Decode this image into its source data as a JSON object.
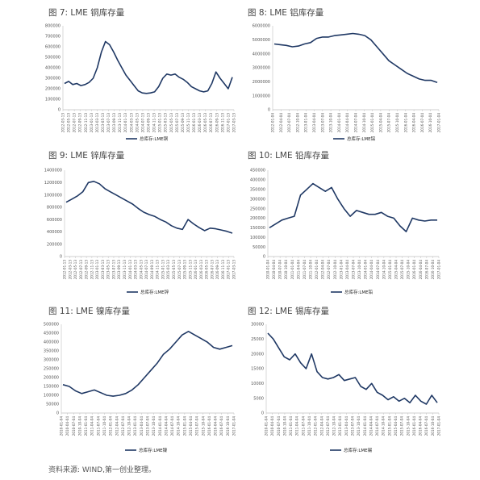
{
  "colors": {
    "line": "#1f3864",
    "axis": "#bfbfbf",
    "background": "#ffffff"
  },
  "figures": [
    {
      "title": "图 7: LME 铜库存量"
    },
    {
      "title": "图 8: LME 铝库存量"
    },
    {
      "title": "图 9: LME 锌库存量"
    },
    {
      "title": "图 10: LME 铅库存量"
    },
    {
      "title": "图 11: LME 镍库存量"
    },
    {
      "title": "图 12: LME 锡库存量"
    }
  ],
  "source": "资料来源: WIND,第一创业整理。",
  "chart_data": [
    {
      "type": "line",
      "ylim": [
        0,
        800000
      ],
      "yticks": [
        "0",
        "100000",
        "200000",
        "300000",
        "400000",
        "500000",
        "600000",
        "700000",
        "800000"
      ],
      "xticks": [
        "2012-03-13",
        "2012-05-13",
        "2012-07-13",
        "2012-09-13",
        "2012-11-13",
        "2013-01-13",
        "2013-03-13",
        "2013-05-13",
        "2013-07-13",
        "2013-09-13",
        "2013-11-13",
        "2014-01-13",
        "2014-03-13",
        "2014-05-13",
        "2014-07-13",
        "2014-09-13",
        "2014-11-13",
        "2015-01-13",
        "2015-03-13",
        "2015-05-13",
        "2015-07-13",
        "2015-09-13",
        "2015-11-13",
        "2016-01-13",
        "2016-03-13",
        "2016-05-13",
        "2016-07-13",
        "2016-09-13",
        "2016-11-13",
        "2017-01-13",
        "2017-03-13"
      ],
      "series": [
        {
          "name": "总库存:LME铜",
          "values": [
            250000,
            270000,
            240000,
            250000,
            230000,
            240000,
            260000,
            300000,
            400000,
            550000,
            650000,
            620000,
            550000,
            470000,
            400000,
            330000,
            280000,
            230000,
            180000,
            160000,
            155000,
            160000,
            170000,
            220000,
            300000,
            340000,
            330000,
            340000,
            310000,
            290000,
            260000,
            220000,
            200000,
            180000,
            170000,
            180000,
            250000,
            360000,
            300000,
            250000,
            200000,
            310000
          ]
        }
      ],
      "legend_position": "bottom"
    },
    {
      "type": "line",
      "ylim": [
        0,
        6000000
      ],
      "yticks": [
        "0",
        "1000000",
        "2000000",
        "3000000",
        "4000000",
        "5000000",
        "6000000"
      ],
      "xticks": [
        "2012-01-04",
        "2012-04-04",
        "2012-07-04",
        "2012-10-04",
        "2013-01-04",
        "2013-04-04",
        "2013-07-04",
        "2013-10-04",
        "2014-01-04",
        "2014-04-04",
        "2014-07-04",
        "2014-10-04",
        "2015-01-04",
        "2015-04-04",
        "2015-07-04",
        "2015-10-04",
        "2016-01-04",
        "2016-04-04",
        "2016-07-04",
        "2016-10-04",
        "2017-01-04"
      ],
      "series": [
        {
          "name": "总库存:LME铝",
          "values": [
            4700000,
            4650000,
            4600000,
            4500000,
            4550000,
            4700000,
            4800000,
            5100000,
            5200000,
            5200000,
            5300000,
            5350000,
            5400000,
            5450000,
            5400000,
            5300000,
            5000000,
            4500000,
            4000000,
            3500000,
            3200000,
            2900000,
            2600000,
            2400000,
            2200000,
            2100000,
            2100000,
            1950000
          ]
        }
      ],
      "legend_position": "bottom"
    },
    {
      "type": "line",
      "ylim": [
        0,
        1400000
      ],
      "yticks": [
        "0",
        "200000",
        "400000",
        "600000",
        "800000",
        "1000000",
        "1200000",
        "1400000"
      ],
      "xticks": [
        "2012-01-13",
        "2012-03-13",
        "2012-05-13",
        "2012-07-13",
        "2012-09-13",
        "2012-11-13",
        "2013-01-13",
        "2013-03-13",
        "2013-05-13",
        "2013-07-13",
        "2013-09-13",
        "2013-11-13",
        "2014-01-13",
        "2014-03-13",
        "2014-05-13",
        "2014-07-13",
        "2014-09-13",
        "2014-11-13",
        "2015-01-13",
        "2015-03-13",
        "2015-05-13",
        "2015-07-13",
        "2015-09-13",
        "2015-11-13",
        "2016-01-13",
        "2016-03-13",
        "2016-05-13",
        "2016-07-13",
        "2016-09-13",
        "2016-11-13",
        "2017-01-13",
        "2017-03-13"
      ],
      "series": [
        {
          "name": "总库存:LME锌",
          "values": [
            880000,
            930000,
            980000,
            1050000,
            1200000,
            1220000,
            1180000,
            1100000,
            1050000,
            1000000,
            950000,
            900000,
            850000,
            780000,
            720000,
            680000,
            650000,
            600000,
            560000,
            500000,
            460000,
            440000,
            600000,
            530000,
            470000,
            420000,
            460000,
            450000,
            430000,
            410000,
            380000
          ]
        }
      ],
      "legend_position": "bottom"
    },
    {
      "type": "line",
      "ylim": [
        0,
        450000
      ],
      "yticks": [
        "0",
        "50000",
        "100000",
        "150000",
        "200000",
        "250000",
        "300000",
        "350000",
        "400000",
        "450000"
      ],
      "xticks": [
        "2010-01-04",
        "2010-04-04",
        "2010-07-04",
        "2010-10-04",
        "2011-01-04",
        "2011-04-04",
        "2011-07-04",
        "2011-10-04",
        "2012-01-04",
        "2012-04-04",
        "2012-07-04",
        "2012-10-04",
        "2013-01-04",
        "2013-04-04",
        "2013-07-04",
        "2013-10-04",
        "2014-01-04",
        "2014-04-04",
        "2014-07-04",
        "2014-10-04",
        "2015-01-04",
        "2015-04-04",
        "2015-07-04",
        "2015-10-04",
        "2016-01-04",
        "2016-04-04",
        "2016-07-04",
        "2016-10-04",
        "2017-01-04"
      ],
      "series": [
        {
          "name": "总库存:LME铅",
          "values": [
            150000,
            170000,
            190000,
            200000,
            210000,
            320000,
            350000,
            380000,
            360000,
            340000,
            360000,
            300000,
            250000,
            210000,
            240000,
            230000,
            220000,
            220000,
            230000,
            210000,
            200000,
            160000,
            130000,
            200000,
            190000,
            185000,
            190000,
            190000
          ]
        }
      ],
      "legend_position": "bottom"
    },
    {
      "type": "line",
      "ylim": [
        0,
        500000
      ],
      "yticks": [
        "0",
        "50000",
        "100000",
        "150000",
        "200000",
        "250000",
        "300000",
        "350000",
        "400000",
        "450000",
        "500000"
      ],
      "xticks": [
        "2010-01-04",
        "2010-04-04",
        "2010-07-04",
        "2010-10-04",
        "2011-01-04",
        "2011-04-04",
        "2011-07-04",
        "2011-10-04",
        "2012-01-04",
        "2012-04-04",
        "2012-07-04",
        "2012-10-04",
        "2013-01-04",
        "2013-04-04",
        "2013-07-04",
        "2013-10-04",
        "2014-01-04",
        "2014-04-04",
        "2014-07-04",
        "2014-10-04",
        "2015-01-04",
        "2015-04-04",
        "2015-07-04",
        "2015-10-04",
        "2016-01-04",
        "2016-04-04",
        "2016-07-04",
        "2016-10-04",
        "2017-01-04"
      ],
      "series": [
        {
          "name": "总库存:LME镍",
          "values": [
            160000,
            150000,
            125000,
            110000,
            120000,
            130000,
            115000,
            100000,
            95000,
            100000,
            110000,
            130000,
            160000,
            200000,
            240000,
            280000,
            330000,
            360000,
            400000,
            440000,
            460000,
            440000,
            420000,
            400000,
            370000,
            360000,
            370000,
            380000
          ]
        }
      ],
      "legend_position": "bottom"
    },
    {
      "type": "line",
      "ylim": [
        0,
        30000
      ],
      "yticks": [
        "0",
        "5000",
        "10000",
        "15000",
        "20000",
        "25000",
        "30000"
      ],
      "xticks": [
        "2010-01-04",
        "2010-04-04",
        "2010-07-04",
        "2010-10-04",
        "2011-01-04",
        "2011-04-04",
        "2011-07-04",
        "2011-10-04",
        "2012-01-04",
        "2012-04-04",
        "2012-07-04",
        "2012-10-04",
        "2013-01-04",
        "2013-04-04",
        "2013-07-04",
        "2013-10-04",
        "2014-01-04",
        "2014-04-04",
        "2014-07-04",
        "2014-10-04",
        "2015-01-04",
        "2015-04-04",
        "2015-07-04",
        "2015-10-04",
        "2016-01-04",
        "2016-04-04",
        "2016-07-04",
        "2016-10-04",
        "2017-01-04"
      ],
      "series": [
        {
          "name": "总库存:LME锡",
          "values": [
            27000,
            25000,
            22000,
            19000,
            18000,
            20000,
            17000,
            15000,
            20000,
            14000,
            12000,
            11500,
            12000,
            13000,
            11000,
            11500,
            12000,
            9000,
            8000,
            10000,
            7000,
            6000,
            4500,
            5500,
            4000,
            5000,
            3500,
            6000,
            4000,
            3000,
            6000,
            3500
          ]
        }
      ],
      "legend_position": "bottom"
    }
  ]
}
